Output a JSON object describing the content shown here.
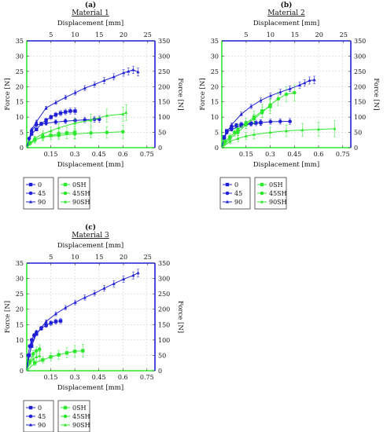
{
  "colors": {
    "blue": "#1f1fd6",
    "green": "#2ee82e",
    "left_axis": "#2ee82e",
    "right_axis": "#1f1fd6"
  },
  "legend": {
    "labels": [
      "0",
      "45",
      "90",
      "0SH",
      "45SH",
      "90SH"
    ],
    "colors": [
      "#1f1fd6",
      "#1f1fd6",
      "#1f1fd6",
      "#2ee82e",
      "#2ee82e",
      "#2ee82e"
    ],
    "markers": [
      "square",
      "circle",
      "triangle",
      "square",
      "circle",
      "triangle"
    ]
  },
  "chart_data": [
    {
      "type": "line",
      "panel_label": "(a)",
      "title": "Material 1",
      "xlabel": "Displacement [mm]",
      "ylabel": "Force [N]",
      "top_xlabel": "Displacement [mm]",
      "xlim": [
        0,
        0.8
      ],
      "ylim": [
        0,
        35
      ],
      "top_xlim": [
        0,
        26.5
      ],
      "right_ylim": [
        0,
        350
      ],
      "x_ticks": [
        "0.15",
        "0.3",
        "0.45",
        "0.6",
        "0.75"
      ],
      "y_ticks": [
        "0",
        "5",
        "10",
        "15",
        "20",
        "25",
        "30",
        "35"
      ],
      "top_ticks": [
        "5",
        "10",
        "15",
        "20",
        "25"
      ],
      "right_ticks": [
        "0",
        "50",
        "100",
        "150",
        "200",
        "250",
        "300",
        "350"
      ],
      "grid": true,
      "series": [
        {
          "name": "0",
          "axis": "top_right",
          "x": [
            0,
            1,
            2,
            3,
            4,
            5,
            6,
            7,
            8,
            9,
            10
          ],
          "y": [
            0,
            45,
            60,
            78,
            90,
            100,
            108,
            113,
            117,
            120,
            120
          ]
        },
        {
          "name": "45",
          "axis": "top_right",
          "x": [
            0,
            0.5,
            1,
            2,
            4,
            6,
            8,
            10,
            12,
            14,
            15
          ],
          "y": [
            0,
            30,
            55,
            75,
            80,
            84,
            87,
            89,
            91,
            93,
            93
          ]
        },
        {
          "name": "90",
          "axis": "top_right",
          "x": [
            0,
            1,
            2,
            4,
            6,
            8,
            10,
            12,
            14,
            16,
            18,
            20,
            21,
            22,
            23
          ],
          "y": [
            0,
            60,
            85,
            130,
            148,
            165,
            180,
            195,
            207,
            220,
            232,
            245,
            250,
            255,
            248
          ]
        },
        {
          "name": "0SH",
          "axis": "bottom_left",
          "x": [
            0,
            0.02,
            0.05,
            0.1,
            0.15,
            0.2,
            0.25,
            0.3
          ],
          "y": [
            0,
            1.5,
            2.5,
            3.5,
            4,
            4.5,
            4.8,
            5
          ]
        },
        {
          "name": "45SH",
          "axis": "bottom_left",
          "x": [
            0,
            0.05,
            0.1,
            0.2,
            0.3,
            0.4,
            0.5,
            0.6
          ],
          "y": [
            0,
            2.5,
            3.5,
            4,
            4.5,
            4.8,
            5,
            5.2
          ]
        },
        {
          "name": "90SH",
          "axis": "bottom_left",
          "x": [
            0,
            0.05,
            0.1,
            0.15,
            0.2,
            0.3,
            0.4,
            0.5,
            0.6,
            0.62
          ],
          "y": [
            0,
            3,
            4.5,
            5.5,
            6.5,
            8,
            9,
            10.5,
            11,
            11.5
          ]
        }
      ]
    },
    {
      "type": "line",
      "panel_label": "(b)",
      "title": "Material 2",
      "xlabel": "Displacement [mm]",
      "ylabel": "Force [N]",
      "top_xlabel": "Displacement [mm]",
      "xlim": [
        0,
        0.8
      ],
      "ylim": [
        0,
        35
      ],
      "top_xlim": [
        0,
        26.5
      ],
      "right_ylim": [
        0,
        350
      ],
      "x_ticks": [
        "0.15",
        "0.3",
        "0.45",
        "0.6",
        "0.75"
      ],
      "y_ticks": [
        "0",
        "5",
        "10",
        "15",
        "20",
        "25",
        "30",
        "35"
      ],
      "top_ticks": [
        "5",
        "10",
        "15",
        "20",
        "25"
      ],
      "right_ticks": [
        "0",
        "50",
        "100",
        "150",
        "200",
        "250",
        "300",
        "350"
      ],
      "grid": true,
      "series": [
        {
          "name": "0",
          "axis": "top_right",
          "x": [
            0,
            0.5,
            1,
            2,
            3,
            4,
            5,
            6,
            7,
            8
          ],
          "y": [
            0,
            35,
            55,
            68,
            73,
            76,
            78,
            80,
            81,
            82
          ]
        },
        {
          "name": "45",
          "axis": "top_right",
          "x": [
            0,
            0.5,
            1,
            2,
            4,
            6,
            8,
            10,
            12,
            14
          ],
          "y": [
            0,
            30,
            50,
            60,
            72,
            78,
            82,
            85,
            86,
            86
          ]
        },
        {
          "name": "90",
          "axis": "top_right",
          "x": [
            0,
            0.5,
            1,
            2,
            4,
            6,
            8,
            10,
            12,
            14,
            16,
            17,
            18,
            19
          ],
          "y": [
            0,
            30,
            50,
            75,
            110,
            135,
            155,
            170,
            182,
            193,
            205,
            212,
            220,
            222
          ]
        },
        {
          "name": "0SH",
          "axis": "bottom_left",
          "x": [
            0,
            0.02,
            0.05,
            0.08,
            0.1,
            0.15,
            0.2,
            0.25,
            0.3
          ],
          "y": [
            0,
            2,
            3.5,
            5,
            6,
            8,
            10,
            12,
            13.5
          ]
        },
        {
          "name": "45SH",
          "axis": "bottom_left",
          "x": [
            0,
            0.05,
            0.1,
            0.15,
            0.2,
            0.25,
            0.3,
            0.35,
            0.4,
            0.45
          ],
          "y": [
            0,
            3,
            5,
            7.5,
            9.5,
            11.5,
            14,
            16,
            17.5,
            18
          ]
        },
        {
          "name": "90SH",
          "axis": "bottom_left",
          "x": [
            0,
            0.05,
            0.1,
            0.15,
            0.2,
            0.3,
            0.4,
            0.5,
            0.6,
            0.7
          ],
          "y": [
            0,
            2,
            3,
            3.8,
            4.3,
            5,
            5.5,
            5.8,
            6,
            6.2
          ]
        }
      ]
    },
    {
      "type": "line",
      "panel_label": "(c)",
      "title": "Material 3",
      "xlabel": "Displacement [mm]",
      "ylabel": "Force [N]",
      "top_xlabel": "Displacement [mm]",
      "xlim": [
        0,
        0.8
      ],
      "ylim": [
        0,
        35
      ],
      "top_xlim": [
        0,
        26.5
      ],
      "right_ylim": [
        0,
        350
      ],
      "x_ticks": [
        "0.15",
        "0.3",
        "0.45",
        "0.6",
        "0.75"
      ],
      "y_ticks": [
        "0",
        "5",
        "10",
        "15",
        "20",
        "25",
        "30",
        "35"
      ],
      "top_ticks": [
        "5",
        "10",
        "15",
        "20",
        "25"
      ],
      "right_ticks": [
        "0",
        "50",
        "100",
        "150",
        "200",
        "250",
        "300",
        "350"
      ],
      "grid": true,
      "series": [
        {
          "name": "0",
          "axis": "top_right",
          "x": [
            0,
            0.5,
            1,
            2,
            3,
            4,
            5,
            6,
            7
          ],
          "y": [
            0,
            50,
            80,
            120,
            138,
            148,
            155,
            160,
            162
          ]
        },
        {
          "name": "45",
          "axis": "top_right",
          "x": [
            0,
            0.3,
            0.6,
            1,
            1.5,
            2
          ],
          "y": [
            0,
            50,
            80,
            100,
            115,
            125
          ]
        },
        {
          "name": "90",
          "axis": "top_right",
          "x": [
            0,
            1,
            2,
            4,
            6,
            8,
            10,
            12,
            14,
            16,
            18,
            20,
            22,
            23
          ],
          "y": [
            0,
            90,
            120,
            160,
            185,
            205,
            222,
            238,
            252,
            268,
            283,
            298,
            310,
            318
          ]
        },
        {
          "name": "0SH",
          "axis": "bottom_left",
          "x": [
            0,
            0.05,
            0.1,
            0.15,
            0.2,
            0.25,
            0.3,
            0.35
          ],
          "y": [
            0,
            2.5,
            3.5,
            4.5,
            5.2,
            5.8,
            6.3,
            6.5
          ]
        },
        {
          "name": "45SH",
          "axis": "bottom_left",
          "x": [
            0,
            0.02,
            0.04,
            0.06,
            0.08
          ],
          "y": [
            0,
            3,
            5.5,
            6.5,
            7
          ]
        },
        {
          "name": "90SH",
          "axis": "bottom_left",
          "x": [
            0,
            0.02,
            0.04,
            0.06,
            0.08
          ],
          "y": [
            0,
            2.5,
            3.8,
            4.5,
            4.8
          ]
        }
      ]
    }
  ]
}
